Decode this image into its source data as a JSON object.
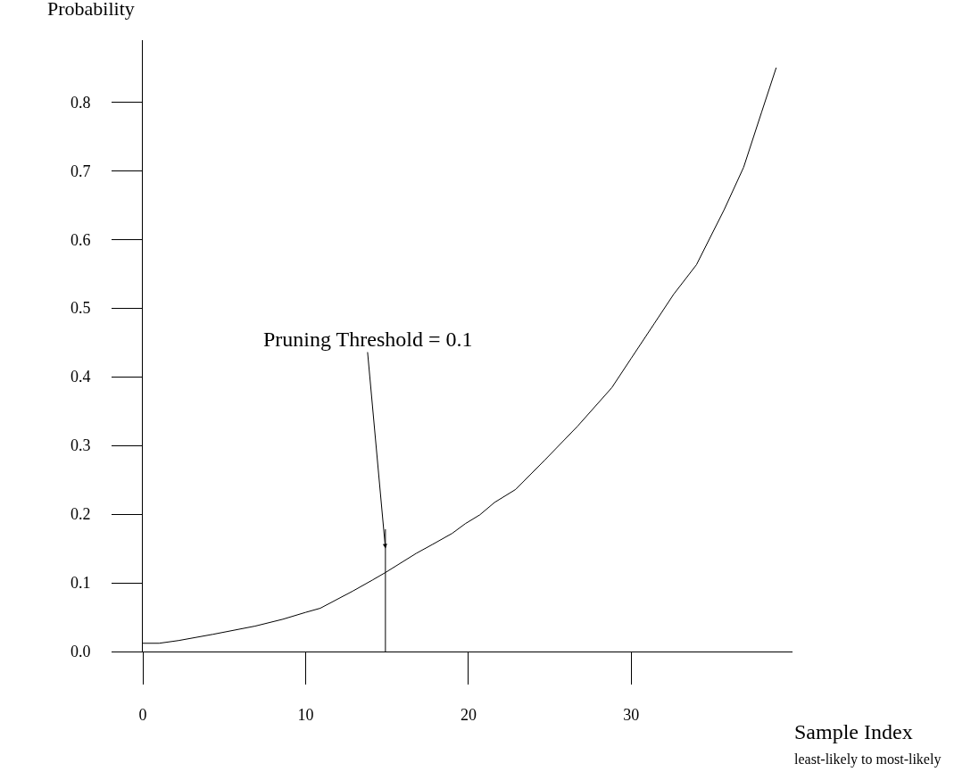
{
  "chart_data": {
    "type": "line",
    "xlabel": "Sample Index",
    "ylabel": "Probability",
    "x": [
      0,
      1,
      2.2,
      4.3,
      6.9,
      8.6,
      10,
      10.9,
      12.9,
      14.1,
      14.9,
      16.8,
      17.8,
      19,
      19.8,
      20.7,
      21.6,
      22.9,
      24.7,
      26.7,
      28.8,
      30,
      31.4,
      32.6,
      34,
      35.7,
      36.9,
      38,
      38.9
    ],
    "series": [
      {
        "color": "#000000",
        "values": [
          0.012,
          0.012,
          0.016,
          0.025,
          0.037,
          0.047,
          0.057,
          0.063,
          0.088,
          0.104,
          0.115,
          0.143,
          0.156,
          0.172,
          0.186,
          0.199,
          0.217,
          0.236,
          0.279,
          0.328,
          0.384,
          0.427,
          0.477,
          0.52,
          0.563,
          0.643,
          0.705,
          0.785,
          0.85
        ]
      }
    ],
    "xlim": [
      0,
      39.9
    ],
    "xticks": [
      0,
      10,
      20,
      30
    ],
    "ylim": [
      0,
      0.89
    ],
    "yticks": [
      "0.0",
      0.1,
      0.2,
      0.3,
      0.4,
      0.5,
      0.6,
      0.7,
      0.8
    ],
    "ref_lines": [
      {
        "axis": "x",
        "value": 14.9,
        "color": "#000000"
      }
    ],
    "annotations": [
      {
        "text": "Pruning Threshold = 0.1",
        "x": 14.9,
        "y": 0.15
      },
      "least-likely to most-likely"
    ],
    "marker": "none",
    "line_style": "solid"
  }
}
